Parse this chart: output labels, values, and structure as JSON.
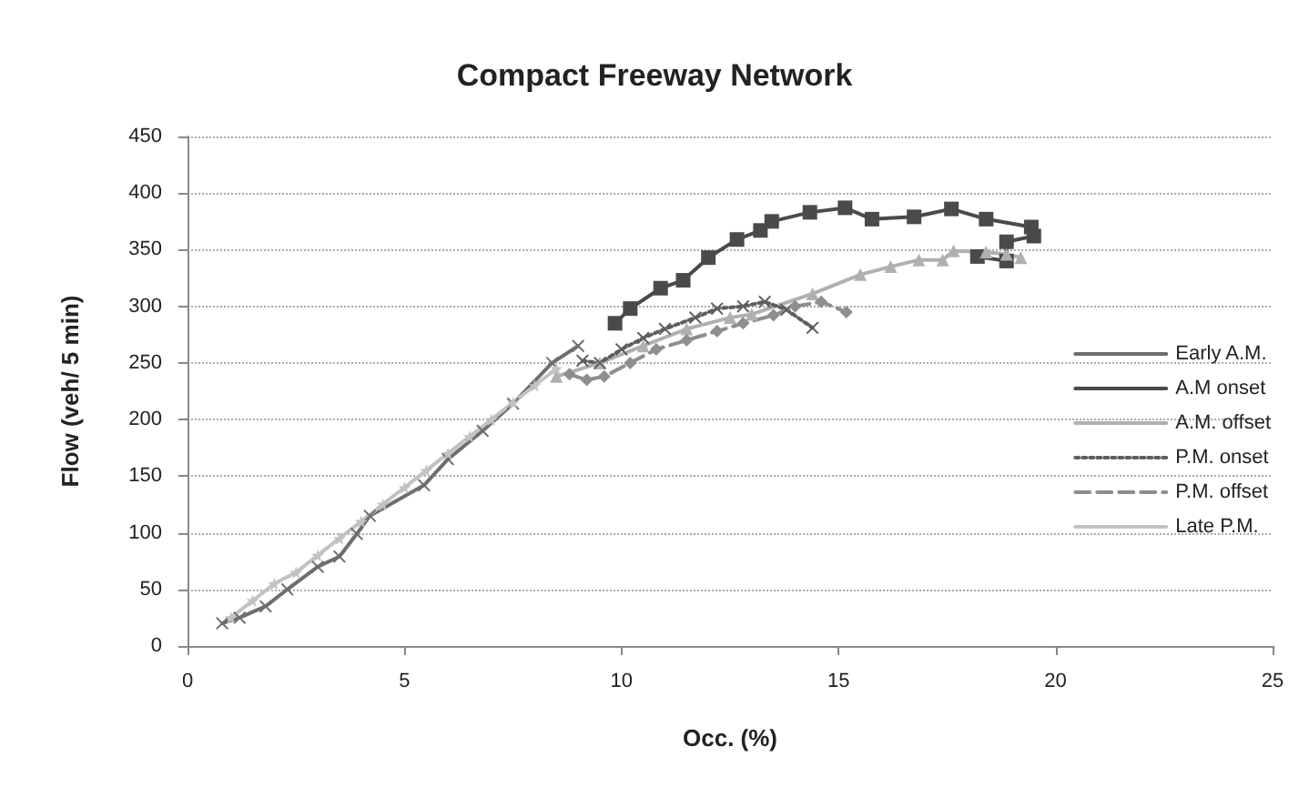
{
  "chart_data": {
    "type": "line",
    "title": "Compact Freeway Network",
    "xlabel": "Occ. (%)",
    "ylabel": "Flow (veh/ 5 min)",
    "xlim": [
      0,
      25
    ],
    "xticks": [
      0,
      5,
      10,
      15,
      20,
      25
    ],
    "ylim": [
      0,
      450
    ],
    "yticks": [
      0,
      50,
      100,
      150,
      200,
      250,
      300,
      350,
      400,
      450
    ],
    "grid": "y",
    "legend": "right",
    "series": [
      {
        "name": "Early A.M.",
        "color": "#6e6e6e",
        "marker": "cross",
        "line_style": "solid",
        "x": [
          0.8,
          1.2,
          1.8,
          2.3,
          3.0,
          3.5,
          3.9,
          4.2,
          5.45,
          6.0,
          6.8,
          7.5,
          8.4,
          9.0
        ],
        "values": [
          20,
          25,
          35,
          50,
          70,
          79,
          99,
          115,
          142,
          165,
          190,
          214,
          250,
          265
        ]
      },
      {
        "name": "A.M onset",
        "color": "#4a4a4a",
        "marker": "square",
        "line_style": "solid",
        "x": [
          9.85,
          10.2,
          10.9,
          11.42,
          12.0,
          12.66,
          13.2,
          13.46,
          14.34,
          15.15,
          15.77,
          16.74,
          17.6,
          18.4,
          19.44,
          19.5,
          18.87,
          18.87,
          18.2
        ],
        "values": [
          285,
          298,
          316,
          323,
          343,
          359,
          367,
          375,
          383,
          387,
          377,
          379,
          386,
          377,
          370,
          362,
          357,
          340,
          344
        ]
      },
      {
        "name": "A.M. offset",
        "color": "#b0b0b0",
        "marker": "triangle",
        "line_style": "solid",
        "x": [
          8.5,
          9.5,
          10.5,
          11.5,
          12.5,
          13.0,
          14.4,
          15.5,
          16.2,
          16.85,
          17.4,
          17.65,
          18.4,
          18.87,
          19.2
        ],
        "values": [
          238,
          250,
          265,
          280,
          290,
          293,
          311,
          328,
          335,
          341,
          341,
          349,
          348,
          346,
          343
        ]
      },
      {
        "name": "P.M. onset",
        "color": "#5e5e5e",
        "marker": "cross",
        "line_style": "dotted",
        "x": [
          9.1,
          9.5,
          10.0,
          10.5,
          11.0,
          11.7,
          12.2,
          12.8,
          13.3,
          13.8,
          14.4
        ],
        "values": [
          252,
          250,
          262,
          272,
          280,
          290,
          298,
          300,
          304,
          297,
          281
        ]
      },
      {
        "name": "P.M. offset",
        "color": "#8e8e8e",
        "marker": "diamond",
        "line_style": "dashed",
        "x": [
          8.8,
          9.2,
          9.6,
          10.2,
          10.8,
          11.5,
          12.2,
          12.8,
          13.5,
          14.0,
          14.6,
          15.18
        ],
        "values": [
          240,
          235,
          238,
          250,
          262,
          270,
          278,
          285,
          292,
          300,
          304,
          295
        ]
      },
      {
        "name": "Late P.M.",
        "color": "#c2c2c2",
        "marker": "star",
        "line_style": "solid",
        "x": [
          1.0,
          1.5,
          2.0,
          2.5,
          3.0,
          3.5,
          4.0,
          4.5,
          5.0,
          5.5,
          6.0,
          6.5,
          7.0,
          7.5,
          8.0,
          8.5
        ],
        "values": [
          25,
          40,
          55,
          65,
          80,
          95,
          110,
          125,
          140,
          155,
          170,
          185,
          200,
          215,
          230,
          245
        ]
      }
    ]
  }
}
